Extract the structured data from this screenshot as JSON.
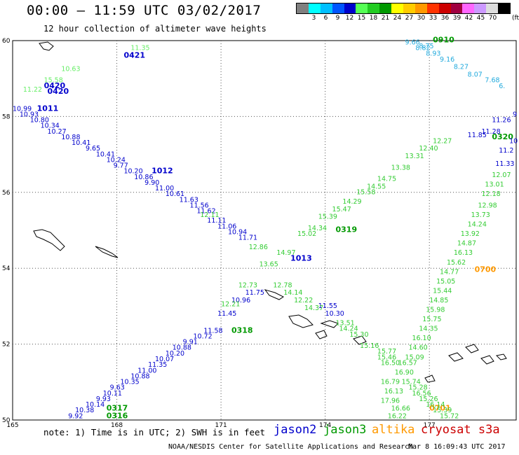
{
  "header": {
    "title": "00:00 – 11:59 UTC 03/02/2017",
    "subtitle": "12 hour collection of altimeter wave heights"
  },
  "colorbar": {
    "unit": "(ft)",
    "swatches": [
      {
        "color": "#808080",
        "label": ""
      },
      {
        "color": "#00ffff",
        "label": "3"
      },
      {
        "color": "#00bfff",
        "label": "6"
      },
      {
        "color": "#0055ff",
        "label": "9"
      },
      {
        "color": "#0000cc",
        "label": "12"
      },
      {
        "color": "#55ff55",
        "label": "15"
      },
      {
        "color": "#22cc22",
        "label": "18"
      },
      {
        "color": "#009900",
        "label": "21"
      },
      {
        "color": "#ffff00",
        "label": "24"
      },
      {
        "color": "#ffcc00",
        "label": "27"
      },
      {
        "color": "#ff9900",
        "label": "30"
      },
      {
        "color": "#ff3300",
        "label": "33"
      },
      {
        "color": "#cc0000",
        "label": "36"
      },
      {
        "color": "#a00040",
        "label": "39"
      },
      {
        "color": "#ff66ff",
        "label": "42"
      },
      {
        "color": "#cc99ff",
        "label": "45"
      },
      {
        "color": "#dddddd",
        "label": "70"
      },
      {
        "color": "#000000",
        "label": ""
      }
    ]
  },
  "map": {
    "lon_range": [
      165,
      179.5
    ],
    "lat_range": [
      50,
      60
    ],
    "lon_ticks": [
      "165",
      "168",
      "171",
      "174",
      "177"
    ],
    "lat_ticks": [
      "50",
      "52",
      "54",
      "56",
      "58",
      "60"
    ],
    "grid": "dotted"
  },
  "tracks": [
    {
      "id": "track-nw-green",
      "color": "#66ee66",
      "labels": [
        {
          "text": "11.35",
          "lon": 168.4,
          "lat": 59.75
        },
        {
          "text": "15.58",
          "lon": 165.9,
          "lat": 58.9
        },
        {
          "text": "10.63",
          "lon": 166.4,
          "lat": 59.2
        },
        {
          "text": "11.22",
          "lon": 165.3,
          "lat": 58.65
        }
      ]
    },
    {
      "id": "track-nw-blue",
      "color": "#0000cc",
      "labels": [
        {
          "text": "0421",
          "lon": 168.2,
          "lat": 59.55,
          "time": true
        },
        {
          "text": "0420",
          "lon": 166.0,
          "lat": 58.6,
          "time": true
        },
        {
          "text": "0420",
          "lon": 165.9,
          "lat": 58.75,
          "time": true
        }
      ]
    },
    {
      "id": "track-blue-descending",
      "color": "#0000cc",
      "labels": [
        {
          "text": "10.99",
          "lon": 165.0,
          "lat": 58.15
        },
        {
          "text": "1011",
          "lon": 165.7,
          "lat": 58.15,
          "time": true
        },
        {
          "text": "10.93",
          "lon": 165.2,
          "lat": 58.0
        },
        {
          "text": "10.80",
          "lon": 165.5,
          "lat": 57.85
        },
        {
          "text": "10.34",
          "lon": 165.8,
          "lat": 57.7
        },
        {
          "text": "10.27",
          "lon": 166.0,
          "lat": 57.55
        },
        {
          "text": "10.88",
          "lon": 166.4,
          "lat": 57.4
        },
        {
          "text": "10.41",
          "lon": 166.7,
          "lat": 57.25
        },
        {
          "text": "9.65",
          "lon": 167.1,
          "lat": 57.1
        },
        {
          "text": "10.41",
          "lon": 167.4,
          "lat": 56.95
        },
        {
          "text": "10.24",
          "lon": 167.7,
          "lat": 56.8
        },
        {
          "text": "9.77",
          "lon": 167.9,
          "lat": 56.65
        },
        {
          "text": "10.20",
          "lon": 168.2,
          "lat": 56.5
        },
        {
          "text": "1012",
          "lon": 169.0,
          "lat": 56.5,
          "time": true
        },
        {
          "text": "10.86",
          "lon": 168.5,
          "lat": 56.35
        },
        {
          "text": "9.90",
          "lon": 168.8,
          "lat": 56.2
        },
        {
          "text": "11.00",
          "lon": 169.1,
          "lat": 56.05
        },
        {
          "text": "10.61",
          "lon": 169.4,
          "lat": 55.9
        },
        {
          "text": "11.63",
          "lon": 169.8,
          "lat": 55.75
        },
        {
          "text": "11.56",
          "lon": 170.1,
          "lat": 55.6
        },
        {
          "text": "11.62",
          "lon": 170.3,
          "lat": 55.45
        },
        {
          "text": "11.11",
          "lon": 170.6,
          "lat": 55.2
        },
        {
          "text": "11.06",
          "lon": 170.9,
          "lat": 55.05
        },
        {
          "text": "10.94",
          "lon": 171.2,
          "lat": 54.9
        },
        {
          "text": "11.71",
          "lon": 171.5,
          "lat": 54.75
        },
        {
          "text": "1013",
          "lon": 173.0,
          "lat": 54.2,
          "time": true
        },
        {
          "text": "11.55",
          "lon": 173.8,
          "lat": 52.95
        },
        {
          "text": "10.30",
          "lon": 174.0,
          "lat": 52.75
        }
      ]
    },
    {
      "id": "track-blue-ascending",
      "color": "#0000cc",
      "labels": [
        {
          "text": "9.92",
          "lon": 166.6,
          "lat": 50.05
        },
        {
          "text": "10.38",
          "lon": 166.8,
          "lat": 50.2
        },
        {
          "text": "10.14",
          "lon": 167.1,
          "lat": 50.35
        },
        {
          "text": "9.93",
          "lon": 167.4,
          "lat": 50.5
        },
        {
          "text": "10.11",
          "lon": 167.6,
          "lat": 50.65
        },
        {
          "text": "9.63",
          "lon": 167.8,
          "lat": 50.8
        },
        {
          "text": "10.35",
          "lon": 168.1,
          "lat": 50.95
        },
        {
          "text": "10.88",
          "lon": 168.4,
          "lat": 51.1
        },
        {
          "text": "11.00",
          "lon": 168.6,
          "lat": 51.25
        },
        {
          "text": "11.35",
          "lon": 168.9,
          "lat": 51.4
        },
        {
          "text": "10.07",
          "lon": 169.1,
          "lat": 51.55
        },
        {
          "text": "10.20",
          "lon": 169.4,
          "lat": 51.7
        },
        {
          "text": "10.88",
          "lon": 169.6,
          "lat": 51.85
        },
        {
          "text": "9.91",
          "lon": 169.9,
          "lat": 52.0
        },
        {
          "text": "10.72",
          "lon": 170.2,
          "lat": 52.15
        },
        {
          "text": "11.58",
          "lon": 170.5,
          "lat": 52.3
        },
        {
          "text": "11.45",
          "lon": 170.9,
          "lat": 52.75
        },
        {
          "text": "10.96",
          "lon": 171.3,
          "lat": 53.1
        },
        {
          "text": "11.75",
          "lon": 171.7,
          "lat": 53.3
        }
      ]
    },
    {
      "id": "track-green-ascending",
      "color": "#009900",
      "labels": [
        {
          "text": "0317",
          "lon": 167.7,
          "lat": 50.25,
          "time": true
        },
        {
          "text": "0316",
          "lon": 167.7,
          "lat": 50.05,
          "time": true
        },
        {
          "text": "0318",
          "lon": 171.3,
          "lat": 52.3,
          "time": true
        },
        {
          "text": "0319",
          "lon": 174.3,
          "lat": 54.95,
          "time": true
        },
        {
          "text": "0320",
          "lon": 178.8,
          "lat": 57.4,
          "time": true
        },
        {
          "text": "0910",
          "lon": 177.1,
          "lat": 59.95,
          "time": true
        },
        {
          "text": "0700",
          "lon": 178.3,
          "lat": 53.9,
          "time": true,
          "color": "#ff9900"
        },
        {
          "text": "0701",
          "lon": 177.0,
          "lat": 50.25,
          "time": true,
          "color": "#ff9900"
        }
      ]
    },
    {
      "id": "track-lightgreen-ascending",
      "color": "#33cc33",
      "labels": [
        {
          "text": "12.21",
          "lon": 171.0,
          "lat": 53.0
        },
        {
          "text": "12.73",
          "lon": 171.5,
          "lat": 53.5
        },
        {
          "text": "13.65",
          "lon": 172.1,
          "lat": 54.05
        },
        {
          "text": "14.97",
          "lon": 172.6,
          "lat": 54.35
        },
        {
          "text": "15.02",
          "lon": 173.2,
          "lat": 54.85
        },
        {
          "text": "14.34",
          "lon": 173.5,
          "lat": 55.0
        },
        {
          "text": "15.39",
          "lon": 173.8,
          "lat": 55.3
        },
        {
          "text": "15.47",
          "lon": 174.2,
          "lat": 55.5
        },
        {
          "text": "14.29",
          "lon": 174.5,
          "lat": 55.7
        },
        {
          "text": "15.58",
          "lon": 174.9,
          "lat": 55.95
        },
        {
          "text": "14.55",
          "lon": 175.2,
          "lat": 56.1
        },
        {
          "text": "14.75",
          "lon": 175.5,
          "lat": 56.3
        },
        {
          "text": "13.38",
          "lon": 175.9,
          "lat": 56.6
        },
        {
          "text": "13.31",
          "lon": 176.3,
          "lat": 56.9
        },
        {
          "text": "12.40",
          "lon": 176.7,
          "lat": 57.1
        },
        {
          "text": "12.27",
          "lon": 177.1,
          "lat": 57.3
        },
        {
          "text": "12.11",
          "lon": 170.4,
          "lat": 55.35
        },
        {
          "text": "12.86",
          "lon": 171.8,
          "lat": 54.5
        },
        {
          "text": "12.78",
          "lon": 172.5,
          "lat": 53.5
        },
        {
          "text": "14.14",
          "lon": 172.8,
          "lat": 53.3
        },
        {
          "text": "12.22",
          "lon": 173.1,
          "lat": 53.1
        },
        {
          "text": "14.37",
          "lon": 173.4,
          "lat": 52.9
        },
        {
          "text": "13.51",
          "lon": 174.3,
          "lat": 52.5
        },
        {
          "text": "14.24",
          "lon": 174.4,
          "lat": 52.35
        },
        {
          "text": "15.30",
          "lon": 174.7,
          "lat": 52.2
        },
        {
          "text": "15.16",
          "lon": 175.0,
          "lat": 51.9
        },
        {
          "text": "15.77",
          "lon": 175.5,
          "lat": 51.75
        },
        {
          "text": "15.46",
          "lon": 175.5,
          "lat": 51.6
        },
        {
          "text": "16.50",
          "lon": 175.6,
          "lat": 51.45
        },
        {
          "text": "16.79",
          "lon": 175.6,
          "lat": 50.95
        },
        {
          "text": "16.13",
          "lon": 175.7,
          "lat": 50.7
        },
        {
          "text": "17.96",
          "lon": 175.6,
          "lat": 50.45
        },
        {
          "text": "16.66",
          "lon": 175.9,
          "lat": 50.25
        },
        {
          "text": "16.22",
          "lon": 175.8,
          "lat": 50.05
        }
      ]
    },
    {
      "id": "track-green-descending-east",
      "color": "#33cc33",
      "labels": [
        {
          "text": "12.07",
          "lon": 178.8,
          "lat": 56.4
        },
        {
          "text": "13.01",
          "lon": 178.6,
          "lat": 56.15
        },
        {
          "text": "12.18",
          "lon": 178.5,
          "lat": 55.9
        },
        {
          "text": "12.98",
          "lon": 178.4,
          "lat": 55.6
        },
        {
          "text": "13.73",
          "lon": 178.2,
          "lat": 55.35
        },
        {
          "text": "14.24",
          "lon": 178.1,
          "lat": 55.1
        },
        {
          "text": "13.92",
          "lon": 177.9,
          "lat": 54.85
        },
        {
          "text": "14.87",
          "lon": 177.8,
          "lat": 54.6
        },
        {
          "text": "16.13",
          "lon": 177.7,
          "lat": 54.35
        },
        {
          "text": "15.62",
          "lon": 177.5,
          "lat": 54.1
        },
        {
          "text": "14.77",
          "lon": 177.3,
          "lat": 53.85
        },
        {
          "text": "15.05",
          "lon": 177.2,
          "lat": 53.6
        },
        {
          "text": "15.44",
          "lon": 177.1,
          "lat": 53.35
        },
        {
          "text": "14.85",
          "lon": 177.0,
          "lat": 53.1
        },
        {
          "text": "15.98",
          "lon": 176.9,
          "lat": 52.85
        },
        {
          "text": "15.75",
          "lon": 176.8,
          "lat": 52.6
        },
        {
          "text": "14.35",
          "lon": 176.7,
          "lat": 52.35
        },
        {
          "text": "16.10",
          "lon": 176.5,
          "lat": 52.1
        },
        {
          "text": "14.60",
          "lon": 176.4,
          "lat": 51.85
        },
        {
          "text": "15.09",
          "lon": 176.3,
          "lat": 51.6
        },
        {
          "text": "16.57",
          "lon": 176.1,
          "lat": 51.45
        },
        {
          "text": "16.90",
          "lon": 176.0,
          "lat": 51.2
        },
        {
          "text": "15.74",
          "lon": 176.2,
          "lat": 50.95
        },
        {
          "text": "15.28",
          "lon": 176.4,
          "lat": 50.8
        },
        {
          "text": "16.56",
          "lon": 176.5,
          "lat": 50.65
        },
        {
          "text": "15.26",
          "lon": 176.7,
          "lat": 50.5
        },
        {
          "text": "16.14",
          "lon": 176.9,
          "lat": 50.35
        },
        {
          "text": "15.39",
          "lon": 177.1,
          "lat": 50.2
        },
        {
          "text": "15.72",
          "lon": 177.3,
          "lat": 50.05
        }
      ]
    },
    {
      "id": "track-blue-east",
      "color": "#0000cc",
      "labels": [
        {
          "text": "9",
          "lon": 179.4,
          "lat": 58.0
        },
        {
          "text": "11.26",
          "lon": 178.8,
          "lat": 57.85
        },
        {
          "text": "11.28",
          "lon": 178.5,
          "lat": 57.55
        },
        {
          "text": "11.85",
          "lon": 178.1,
          "lat": 57.45
        },
        {
          "text": "10",
          "lon": 179.3,
          "lat": 57.3
        },
        {
          "text": "11.2",
          "lon": 179.0,
          "lat": 57.05
        },
        {
          "text": "11.33",
          "lon": 178.9,
          "lat": 56.7
        }
      ]
    },
    {
      "id": "track-cyan-ne",
      "color": "#22aadd",
      "labels": [
        {
          "text": "9.66",
          "lon": 176.3,
          "lat": 59.9
        },
        {
          "text": "8.82",
          "lon": 176.6,
          "lat": 59.75
        },
        {
          "text": "8.93",
          "lon": 176.9,
          "lat": 59.6
        },
        {
          "text": "9.16",
          "lon": 177.3,
          "lat": 59.45
        },
        {
          "text": "8.27",
          "lon": 177.7,
          "lat": 59.25
        },
        {
          "text": "8.07",
          "lon": 178.1,
          "lat": 59.05
        },
        {
          "text": "7.68",
          "lon": 178.6,
          "lat": 58.9
        },
        {
          "text": "6.",
          "lon": 179.0,
          "lat": 58.75
        },
        {
          "text": "8.75",
          "lon": 176.7,
          "lat": 59.8
        }
      ]
    }
  ],
  "footer": {
    "note": "note: 1) Time is in UTC; 2) SWH is in feet",
    "legend": [
      {
        "name": "jason2",
        "color": "#0000cc"
      },
      {
        "name": "jason3",
        "color": "#009900"
      },
      {
        "name": "altika",
        "color": "#ff9900"
      },
      {
        "name": "cryosat s3a",
        "color": "#cc0000"
      }
    ],
    "credit": "NOAA/NESDIS Center for Satellite Applications and Research",
    "stamp": "Mar  8 16:09:43 UTC 2017"
  }
}
